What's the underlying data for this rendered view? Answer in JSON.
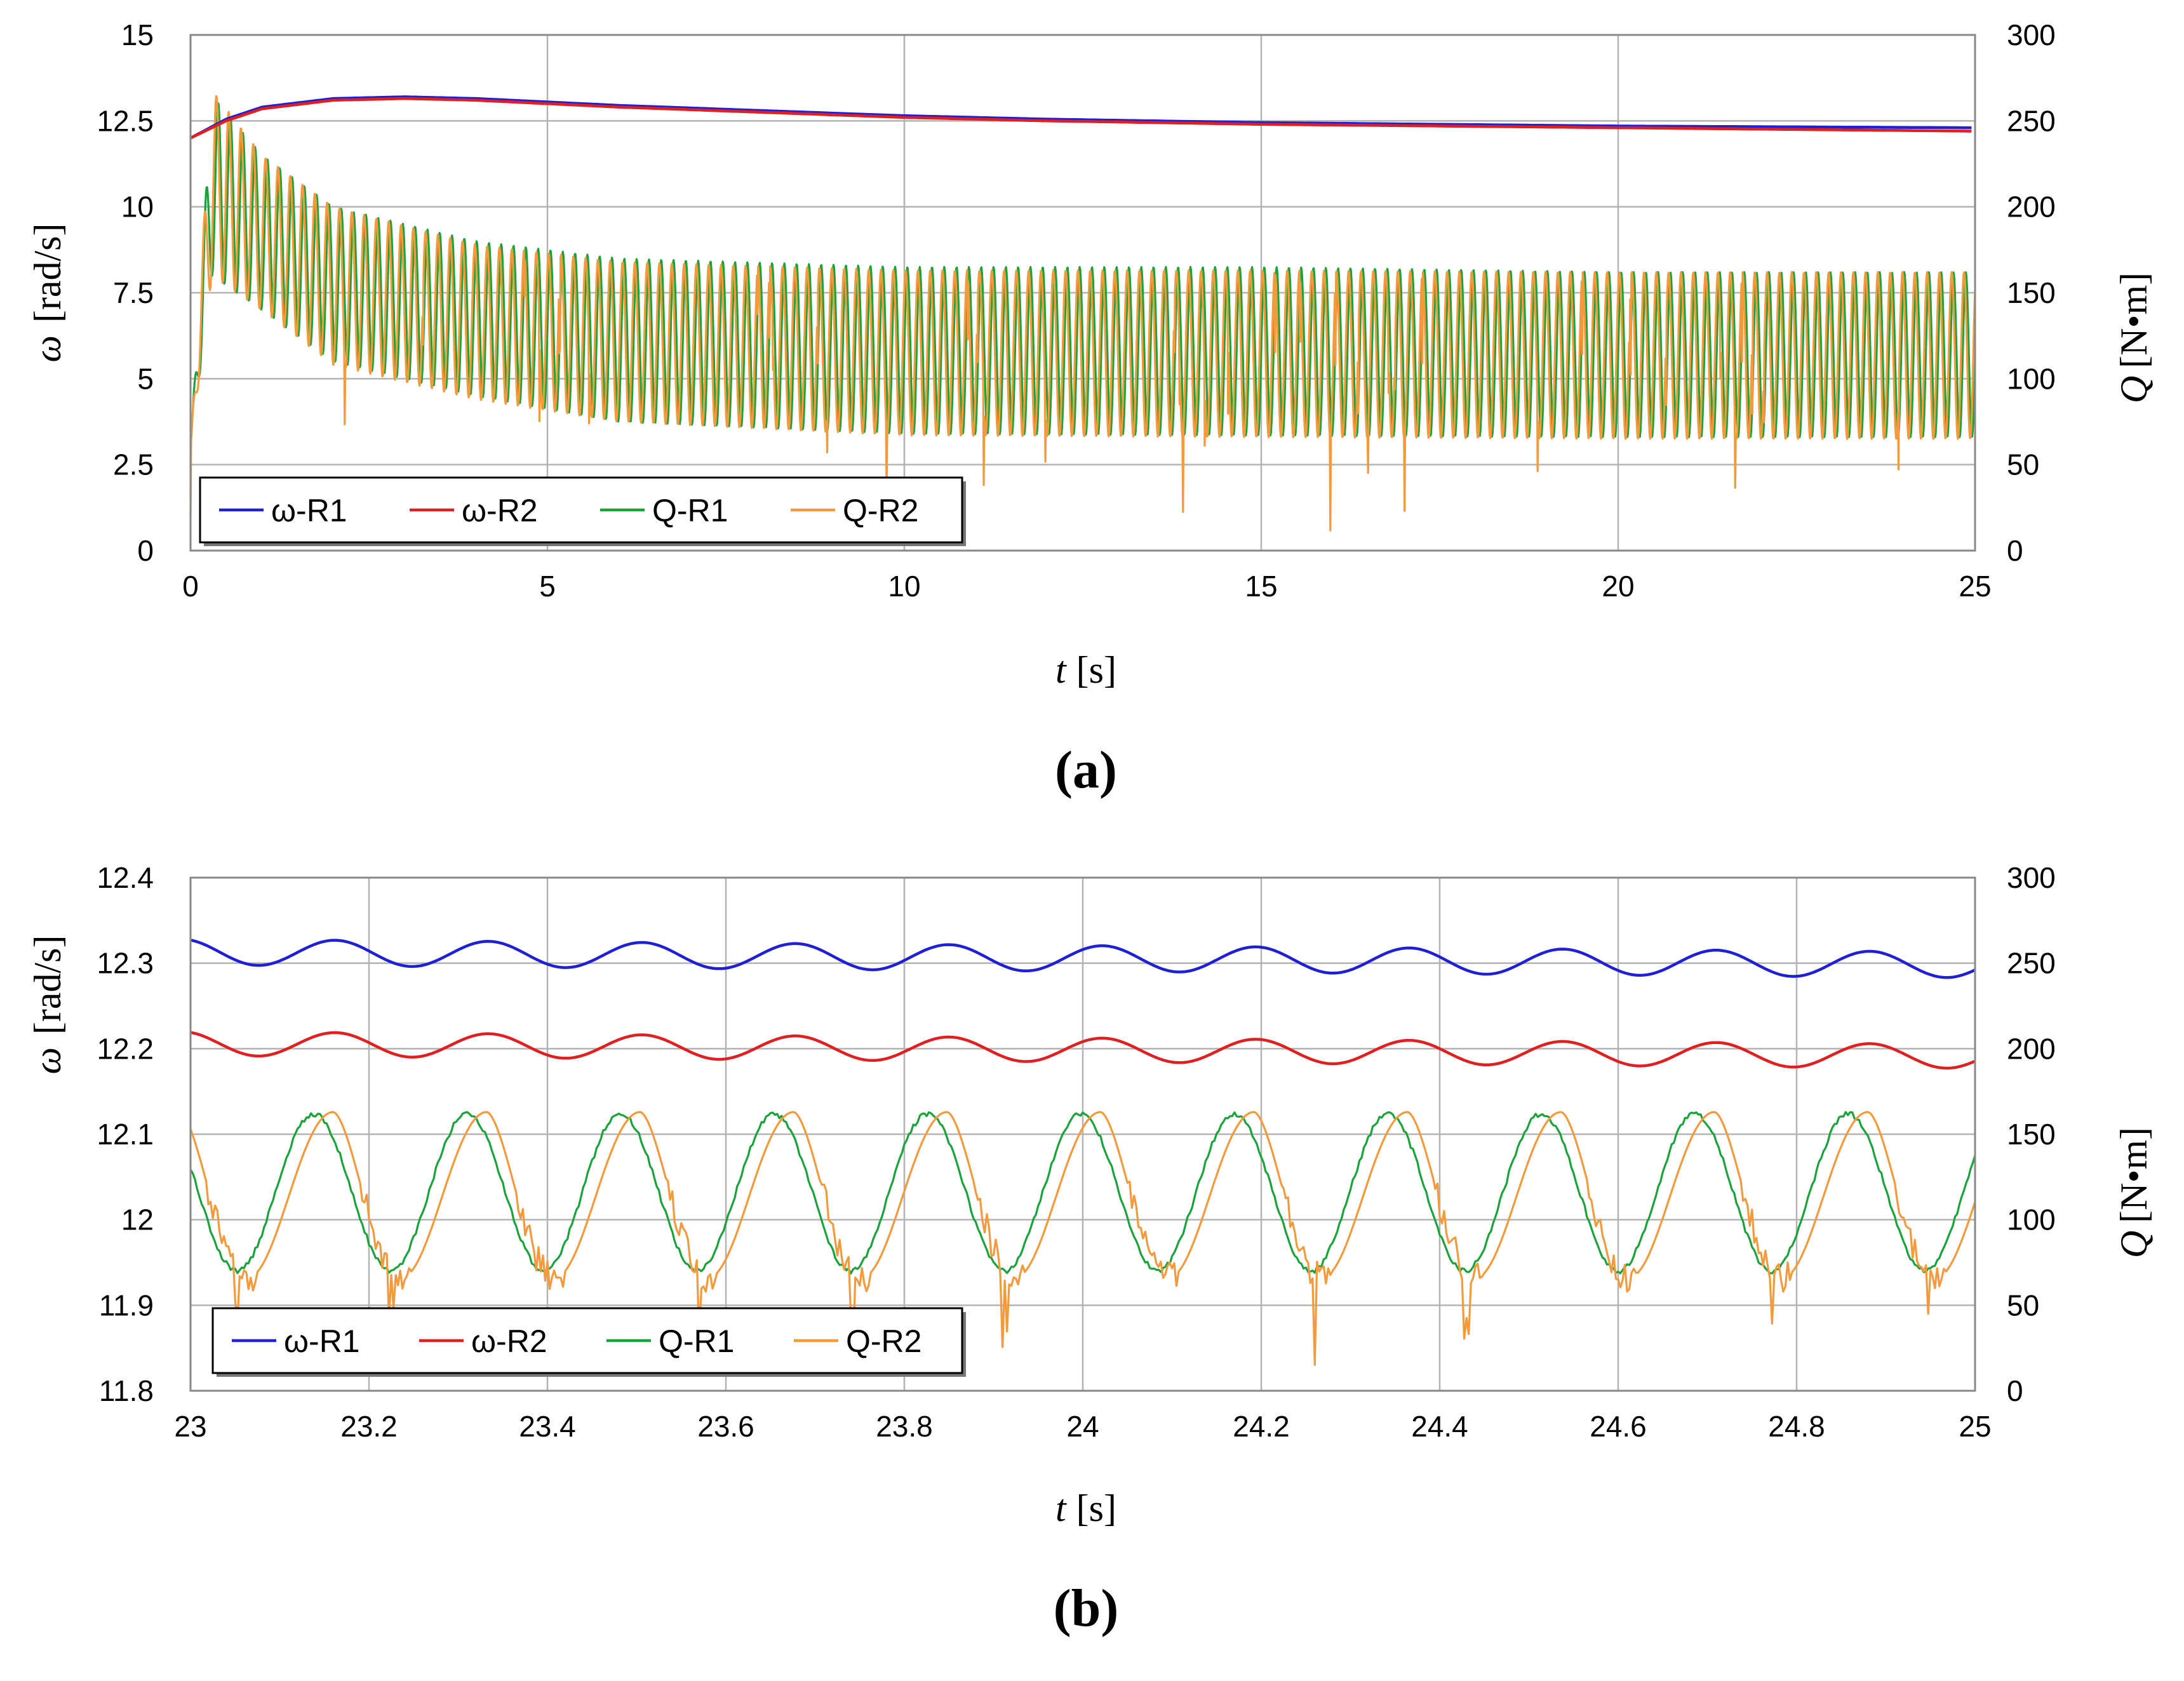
{
  "chart_data": [
    {
      "id": "a",
      "type": "line",
      "caption_letter": "a",
      "caption_open": "(",
      "caption_close": ")",
      "xlabel_var": "t",
      "xlabel_unit": "[s]",
      "ylabel_left_var": "ω",
      "ylabel_left_unit": "[rad/s]",
      "ylabel_right_var": "Q",
      "ylabel_right_unit": "[N•m]",
      "xlim": [
        0,
        25
      ],
      "ylim_left": [
        0,
        15
      ],
      "ylim_right": [
        0,
        300
      ],
      "x_ticks": [
        "0",
        "5",
        "10",
        "15",
        "20",
        "25"
      ],
      "y_left_ticks": [
        "0",
        "2.5",
        "5",
        "7.5",
        "10",
        "12.5",
        "15"
      ],
      "y_right_ticks": [
        "0",
        "50",
        "100",
        "150",
        "200",
        "250",
        "300"
      ],
      "grid": true,
      "legend_position": "bottom-left",
      "series": [
        {
          "name": "ω-R1",
          "axis": "left",
          "color": "#1f1fd6",
          "x": [
            0,
            0.5,
            1,
            2,
            3,
            4,
            5,
            6,
            8,
            10,
            12,
            15,
            20,
            25
          ],
          "values": [
            12.0,
            12.55,
            12.9,
            13.15,
            13.2,
            13.15,
            13.05,
            12.95,
            12.8,
            12.65,
            12.55,
            12.45,
            12.35,
            12.3
          ]
        },
        {
          "name": "ω-R2",
          "axis": "left",
          "color": "#e02020",
          "x": [
            0,
            0.5,
            1,
            2,
            3,
            4,
            5,
            6,
            8,
            10,
            12,
            15,
            20,
            25
          ],
          "values": [
            12.0,
            12.5,
            12.85,
            13.1,
            13.15,
            13.1,
            13.0,
            12.9,
            12.75,
            12.6,
            12.5,
            12.4,
            12.3,
            12.2
          ]
        },
        {
          "name": "Q-R1",
          "axis": "right",
          "color": "#1aa33b",
          "x": [
            0,
            0.3,
            1,
            2,
            4,
            6,
            10,
            15,
            20,
            25
          ],
          "upper": [
            60,
            265,
            230,
            200,
            180,
            170,
            165,
            165,
            162,
            162
          ],
          "lower": [
            60,
            160,
            140,
            110,
            90,
            75,
            68,
            67,
            66,
            66
          ]
        },
        {
          "name": "Q-R2",
          "axis": "right",
          "color": "#f39a3c",
          "x": [
            0,
            0.3,
            1,
            2,
            4,
            6,
            10,
            15,
            20,
            25
          ],
          "upper": [
            60,
            268,
            230,
            200,
            178,
            168,
            163,
            163,
            162,
            162
          ],
          "lower": [
            60,
            160,
            140,
            108,
            88,
            75,
            67,
            66,
            65,
            65
          ]
        }
      ]
    },
    {
      "id": "b",
      "type": "line",
      "caption_letter": "b",
      "caption_open": "(",
      "caption_close": ")",
      "xlabel_var": "t",
      "xlabel_unit": "[s]",
      "ylabel_left_var": "ω",
      "ylabel_left_unit": "[rad/s]",
      "ylabel_right_var": "Q",
      "ylabel_right_unit": "[N•m]",
      "xlim": [
        23,
        25
      ],
      "ylim_left": [
        11.8,
        12.4
      ],
      "ylim_right": [
        0,
        300
      ],
      "x_ticks": [
        "23",
        "23.2",
        "23.4",
        "23.6",
        "23.8",
        "24",
        "24.2",
        "24.4",
        "24.6",
        "24.8",
        "25"
      ],
      "y_left_ticks": [
        "11.8",
        "11.9",
        "12",
        "12.1",
        "12.2",
        "12.3",
        "12.4"
      ],
      "y_right_ticks": [
        "0",
        "50",
        "100",
        "150",
        "200",
        "250",
        "300"
      ],
      "grid": true,
      "legend_position": "bottom-left",
      "period_s": 0.172,
      "series": [
        {
          "name": "ω-R1",
          "axis": "left",
          "color": "#1f1fd6",
          "mean_start": 12.313,
          "mean_end": 12.298,
          "amplitude": 0.015,
          "phase_s": -0.01
        },
        {
          "name": "ω-R2",
          "axis": "left",
          "color": "#e02020",
          "mean_start": 12.206,
          "mean_end": 12.191,
          "amplitude": 0.014,
          "phase_s": -0.01
        },
        {
          "name": "Q-R1",
          "axis": "right",
          "color": "#1aa33b",
          "max": 162,
          "min": 70,
          "first_peak_s": 23.138
        },
        {
          "name": "Q-R2",
          "axis": "right",
          "color": "#f39a3c",
          "max": 163,
          "min": 66,
          "first_peak_s": 23.16
        }
      ]
    }
  ]
}
